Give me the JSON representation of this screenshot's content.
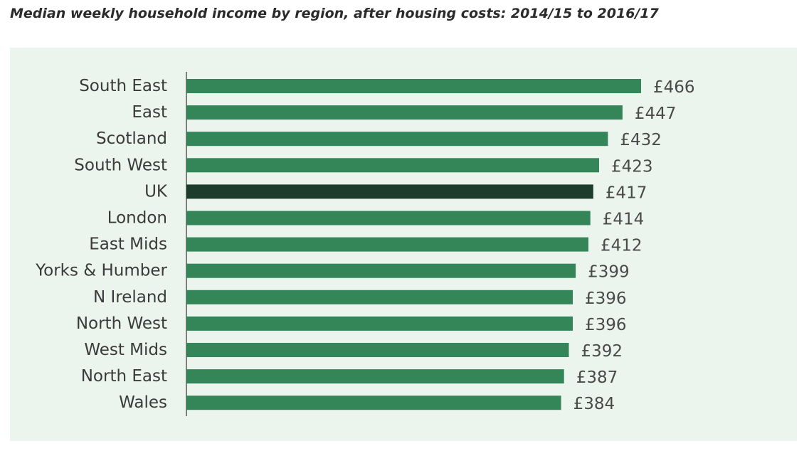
{
  "page": {
    "title": "Median weekly household income by region, after housing costs: 2014/15 to 2016/17"
  },
  "colors": {
    "panel_bg": "#ebf5ee",
    "bar": "#348558",
    "bar_highlight": "#1c3d2b",
    "axis": "#333333",
    "label_text": "#3a3a3a",
    "value_text": "#4a4a4a"
  },
  "chart_data": {
    "type": "bar",
    "orientation": "horizontal",
    "title": "Median weekly household income by region, after housing costs: 2014/15 to 2016/17",
    "xlabel": "",
    "ylabel": "",
    "currency_prefix": "£",
    "highlight": "UK",
    "xlim": [
      0,
      466
    ],
    "categories": [
      "South East",
      "East",
      "Scotland",
      "South West",
      "UK",
      "London",
      "East Mids",
      "Yorks & Humber",
      "N Ireland",
      "North West",
      "West Mids",
      "North East",
      "Wales"
    ],
    "values": [
      466,
      447,
      432,
      423,
      417,
      414,
      412,
      399,
      396,
      396,
      392,
      387,
      384
    ],
    "value_labels": [
      "£466",
      "£447",
      "£432",
      "£423",
      "£417",
      "£414",
      "£412",
      "£399",
      "£396",
      "£396",
      "£392",
      "£387",
      "£384"
    ]
  }
}
